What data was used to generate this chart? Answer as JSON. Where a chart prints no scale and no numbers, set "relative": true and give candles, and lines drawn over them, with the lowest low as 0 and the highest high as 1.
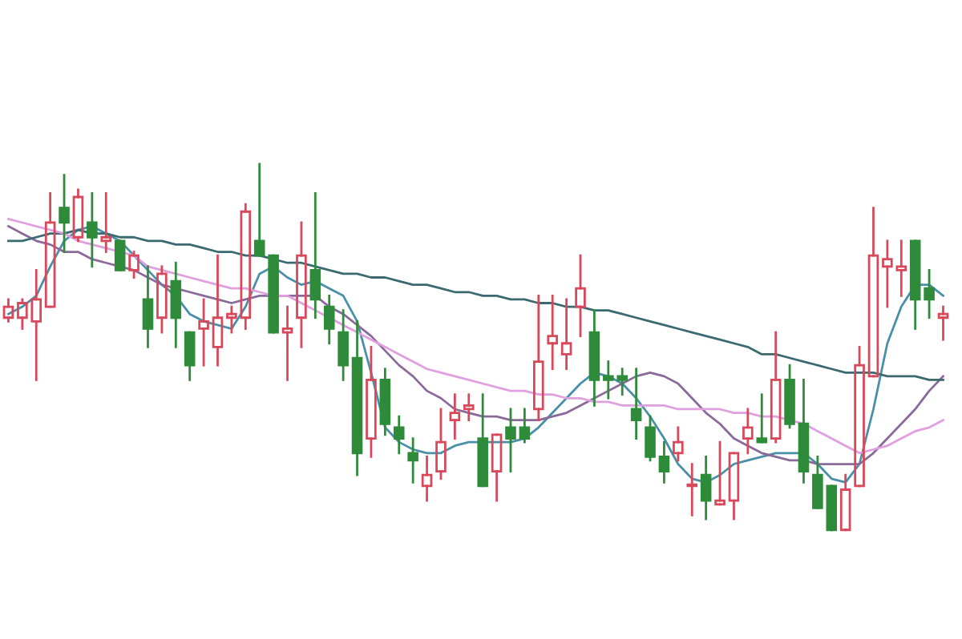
{
  "chart_data": {
    "type": "candlestick",
    "relative": true,
    "categories": [
      null,
      null,
      null,
      null,
      null,
      null,
      null,
      null,
      null,
      null,
      null,
      null,
      null,
      null,
      null,
      null,
      null,
      null,
      null,
      null,
      null,
      null,
      null,
      null,
      null,
      null,
      null,
      null,
      null,
      null,
      null,
      null,
      null,
      null,
      null,
      null,
      null,
      null,
      null,
      null,
      null,
      null,
      null,
      null,
      null,
      null,
      null,
      null,
      null,
      null,
      null,
      null,
      null,
      null,
      null,
      null,
      null,
      null,
      null,
      null,
      null,
      null,
      null,
      null,
      null,
      null,
      null,
      null
    ],
    "ohlc": [
      [
        0.58,
        0.63,
        0.57,
        0.61
      ],
      [
        0.58,
        0.63,
        0.55,
        0.62
      ],
      [
        0.57,
        0.71,
        0.41,
        0.63
      ],
      [
        0.61,
        0.92,
        0.61,
        0.84
      ],
      [
        0.88,
        0.97,
        0.76,
        0.84
      ],
      [
        0.8,
        0.93,
        0.79,
        0.91
      ],
      [
        0.84,
        0.92,
        0.72,
        0.8
      ],
      [
        0.79,
        0.92,
        0.76,
        0.8
      ],
      [
        0.79,
        0.79,
        0.71,
        0.71
      ],
      [
        0.71,
        0.76,
        0.69,
        0.75
      ],
      [
        0.63,
        0.72,
        0.5,
        0.55
      ],
      [
        0.58,
        0.72,
        0.54,
        0.7
      ],
      [
        0.68,
        0.73,
        0.5,
        0.58
      ],
      [
        0.54,
        0.54,
        0.41,
        0.45
      ],
      [
        0.55,
        0.63,
        0.45,
        0.57
      ],
      [
        0.5,
        0.75,
        0.45,
        0.58
      ],
      [
        0.58,
        0.61,
        0.54,
        0.59
      ],
      [
        0.58,
        0.89,
        0.55,
        0.87
      ],
      [
        0.79,
        1.0,
        0.75,
        0.75
      ],
      [
        0.75,
        0.75,
        0.54,
        0.54
      ],
      [
        0.54,
        0.61,
        0.41,
        0.55
      ],
      [
        0.58,
        0.84,
        0.5,
        0.75
      ],
      [
        0.71,
        0.92,
        0.58,
        0.63
      ],
      [
        0.61,
        0.64,
        0.51,
        0.55
      ],
      [
        0.54,
        0.6,
        0.41,
        0.45
      ],
      [
        0.47,
        0.57,
        0.15,
        0.21
      ],
      [
        0.25,
        0.5,
        0.2,
        0.41
      ],
      [
        0.41,
        0.44,
        0.26,
        0.29
      ],
      [
        0.28,
        0.31,
        0.21,
        0.25
      ],
      [
        0.21,
        0.25,
        0.13,
        0.19
      ],
      [
        0.12,
        0.2,
        0.08,
        0.15
      ],
      [
        0.16,
        0.33,
        0.14,
        0.24
      ],
      [
        0.3,
        0.37,
        0.25,
        0.32
      ],
      [
        0.33,
        0.37,
        0.3,
        0.34
      ],
      [
        0.25,
        0.37,
        0.12,
        0.12
      ],
      [
        0.16,
        0.26,
        0.08,
        0.26
      ],
      [
        0.28,
        0.33,
        0.16,
        0.25
      ],
      [
        0.28,
        0.33,
        0.24,
        0.25
      ],
      [
        0.33,
        0.64,
        0.3,
        0.46
      ],
      [
        0.51,
        0.64,
        0.44,
        0.53
      ],
      [
        0.48,
        0.63,
        0.44,
        0.51
      ],
      [
        0.61,
        0.75,
        0.53,
        0.66
      ],
      [
        0.54,
        0.6,
        0.34,
        0.41
      ],
      [
        0.42,
        0.46,
        0.36,
        0.41
      ],
      [
        0.42,
        0.44,
        0.37,
        0.41
      ],
      [
        0.33,
        0.44,
        0.25,
        0.3
      ],
      [
        0.28,
        0.31,
        0.19,
        0.2
      ],
      [
        0.2,
        0.24,
        0.13,
        0.16
      ],
      [
        0.21,
        0.28,
        0.19,
        0.24
      ],
      [
        0.12,
        0.18,
        0.04,
        0.12
      ],
      [
        0.15,
        0.2,
        0.03,
        0.08
      ],
      [
        0.07,
        0.24,
        0.07,
        0.08
      ],
      [
        0.08,
        0.21,
        0.03,
        0.21
      ],
      [
        0.25,
        0.33,
        0.21,
        0.28
      ],
      [
        0.25,
        0.37,
        0.24,
        0.24
      ],
      [
        0.25,
        0.54,
        0.24,
        0.41
      ],
      [
        0.41,
        0.45,
        0.28,
        0.29
      ],
      [
        0.29,
        0.41,
        0.13,
        0.16
      ],
      [
        0.15,
        0.2,
        0.06,
        0.06
      ],
      [
        0.12,
        0.12,
        0.0,
        0.0
      ],
      [
        0.0,
        0.15,
        0.0,
        0.11
      ],
      [
        0.12,
        0.5,
        0.12,
        0.45
      ],
      [
        0.42,
        0.88,
        0.42,
        0.75
      ],
      [
        0.72,
        0.79,
        0.61,
        0.74
      ],
      [
        0.71,
        0.79,
        0.64,
        0.72
      ],
      [
        0.79,
        0.79,
        0.55,
        0.63
      ],
      [
        0.66,
        0.71,
        0.58,
        0.63
      ],
      [
        0.58,
        0.61,
        0.52,
        0.59
      ]
    ],
    "series": [
      {
        "type": "line",
        "color": "#4a8fa8",
        "values": [
          0.59,
          0.61,
          0.64,
          0.72,
          0.79,
          0.82,
          0.83,
          0.81,
          0.79,
          0.75,
          0.71,
          0.67,
          0.64,
          0.59,
          0.57,
          0.56,
          0.55,
          0.61,
          0.7,
          0.72,
          0.69,
          0.67,
          0.68,
          0.66,
          0.64,
          0.57,
          0.43,
          0.28,
          0.24,
          0.22,
          0.21,
          0.21,
          0.23,
          0.24,
          0.24,
          0.24,
          0.24,
          0.25,
          0.28,
          0.32,
          0.36,
          0.4,
          0.43,
          0.42,
          0.4,
          0.36,
          0.31,
          0.25,
          0.18,
          0.14,
          0.13,
          0.15,
          0.18,
          0.19,
          0.2,
          0.21,
          0.21,
          0.21,
          0.18,
          0.14,
          0.13,
          0.18,
          0.33,
          0.51,
          0.61,
          0.67,
          0.67,
          0.64
        ]
      },
      {
        "type": "line",
        "color": "#8a6a9a",
        "values": [
          0.83,
          0.81,
          0.79,
          0.78,
          0.76,
          0.76,
          0.74,
          0.73,
          0.72,
          0.71,
          0.69,
          0.67,
          0.66,
          0.65,
          0.64,
          0.63,
          0.62,
          0.63,
          0.64,
          0.64,
          0.64,
          0.64,
          0.64,
          0.61,
          0.59,
          0.56,
          0.53,
          0.49,
          0.45,
          0.42,
          0.38,
          0.36,
          0.33,
          0.32,
          0.31,
          0.31,
          0.3,
          0.3,
          0.3,
          0.31,
          0.32,
          0.34,
          0.36,
          0.38,
          0.4,
          0.42,
          0.43,
          0.42,
          0.4,
          0.36,
          0.32,
          0.29,
          0.25,
          0.23,
          0.21,
          0.2,
          0.19,
          0.19,
          0.18,
          0.18,
          0.18,
          0.18,
          0.21,
          0.25,
          0.29,
          0.33,
          0.38,
          0.42
        ]
      },
      {
        "type": "line",
        "color": "#3a6a70",
        "values": [
          0.79,
          0.79,
          0.8,
          0.81,
          0.81,
          0.82,
          0.81,
          0.81,
          0.8,
          0.8,
          0.79,
          0.79,
          0.78,
          0.78,
          0.77,
          0.76,
          0.76,
          0.75,
          0.75,
          0.74,
          0.73,
          0.73,
          0.72,
          0.71,
          0.7,
          0.7,
          0.69,
          0.69,
          0.68,
          0.67,
          0.67,
          0.66,
          0.65,
          0.65,
          0.64,
          0.64,
          0.63,
          0.63,
          0.62,
          0.62,
          0.61,
          0.61,
          0.6,
          0.6,
          0.59,
          0.58,
          0.57,
          0.56,
          0.55,
          0.54,
          0.53,
          0.52,
          0.51,
          0.5,
          0.48,
          0.48,
          0.47,
          0.46,
          0.45,
          0.44,
          0.43,
          0.43,
          0.43,
          0.42,
          0.42,
          0.42,
          0.41,
          0.41
        ]
      },
      {
        "type": "line",
        "color": "#e0a0e0",
        "values": [
          0.85,
          0.84,
          0.83,
          0.82,
          0.81,
          0.79,
          0.78,
          0.77,
          0.76,
          0.75,
          0.72,
          0.71,
          0.7,
          0.69,
          0.68,
          0.67,
          0.66,
          0.66,
          0.65,
          0.64,
          0.64,
          0.62,
          0.6,
          0.58,
          0.56,
          0.54,
          0.52,
          0.5,
          0.48,
          0.46,
          0.44,
          0.43,
          0.42,
          0.41,
          0.4,
          0.39,
          0.38,
          0.38,
          0.37,
          0.37,
          0.36,
          0.36,
          0.35,
          0.35,
          0.34,
          0.34,
          0.34,
          0.34,
          0.33,
          0.33,
          0.33,
          0.33,
          0.32,
          0.32,
          0.31,
          0.31,
          0.3,
          0.29,
          0.27,
          0.25,
          0.23,
          0.21,
          0.22,
          0.23,
          0.25,
          0.27,
          0.28,
          0.3
        ]
      }
    ]
  }
}
